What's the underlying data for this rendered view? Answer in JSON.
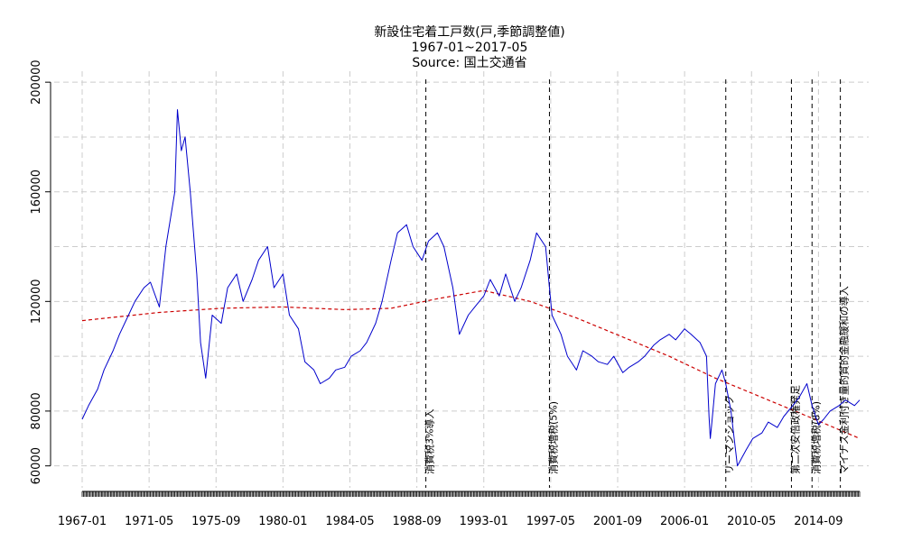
{
  "chart_data": {
    "type": "line",
    "title": "新設住宅着工戸数(戸,季節調整値)",
    "subtitle": "1967-01~2017-05",
    "source": "Source: 国土交通省",
    "xlabel": "",
    "ylabel": "",
    "x_range": [
      "1967-01",
      "2017-05"
    ],
    "x_tick_labels": [
      "1967-01",
      "1971-05",
      "1975-09",
      "1980-01",
      "1984-05",
      "1988-09",
      "1993-01",
      "1997-05",
      "2001-09",
      "2006-01",
      "2010-05",
      "2014-09"
    ],
    "ylim": [
      52000,
      204000
    ],
    "y_tick_labels": [
      "60000",
      "80000",
      "120000",
      "160000",
      "200000"
    ],
    "grid": true,
    "series": [
      {
        "role": "monthly",
        "color": "#0000cc",
        "x": [
          "1967-01",
          "1967-06",
          "1968-01",
          "1968-06",
          "1969-01",
          "1969-06",
          "1970-01",
          "1970-06",
          "1971-01",
          "1971-06",
          "1972-01",
          "1972-06",
          "1973-01",
          "1973-03",
          "1973-06",
          "1973-09",
          "1974-01",
          "1974-06",
          "1974-09",
          "1975-01",
          "1975-06",
          "1976-01",
          "1976-06",
          "1977-01",
          "1977-06",
          "1978-01",
          "1978-06",
          "1979-01",
          "1979-06",
          "1980-01",
          "1980-06",
          "1981-01",
          "1981-06",
          "1982-01",
          "1982-06",
          "1983-01",
          "1983-06",
          "1984-01",
          "1984-06",
          "1985-01",
          "1985-06",
          "1986-01",
          "1986-06",
          "1987-01",
          "1987-06",
          "1988-01",
          "1988-06",
          "1989-01",
          "1989-06",
          "1990-01",
          "1990-06",
          "1991-01",
          "1991-06",
          "1992-01",
          "1992-06",
          "1993-01",
          "1993-06",
          "1994-01",
          "1994-06",
          "1995-01",
          "1995-06",
          "1996-01",
          "1996-06",
          "1997-01",
          "1997-06",
          "1998-01",
          "1998-06",
          "1999-01",
          "1999-06",
          "2000-01",
          "2000-06",
          "2001-01",
          "2001-06",
          "2002-01",
          "2002-06",
          "2003-01",
          "2003-06",
          "2004-01",
          "2004-06",
          "2005-01",
          "2005-06",
          "2006-01",
          "2006-06",
          "2007-01",
          "2007-06",
          "2007-08",
          "2007-09",
          "2007-10",
          "2008-01",
          "2008-06",
          "2008-09",
          "2009-01",
          "2009-06",
          "2010-01",
          "2010-06",
          "2011-01",
          "2011-06",
          "2012-01",
          "2012-06",
          "2013-01",
          "2013-06",
          "2013-12",
          "2014-04",
          "2014-09",
          "2015-01",
          "2015-06",
          "2016-01",
          "2016-06",
          "2017-01",
          "2017-05"
        ],
        "values": [
          77000,
          82000,
          88000,
          95000,
          102000,
          108000,
          115000,
          120000,
          125000,
          127000,
          118000,
          140000,
          160000,
          190000,
          175000,
          180000,
          160000,
          130000,
          105000,
          92000,
          115000,
          112000,
          125000,
          130000,
          120000,
          128000,
          135000,
          140000,
          125000,
          130000,
          115000,
          110000,
          98000,
          95000,
          90000,
          92000,
          95000,
          96000,
          100000,
          102000,
          105000,
          112000,
          120000,
          135000,
          145000,
          148000,
          140000,
          135000,
          142000,
          145000,
          140000,
          125000,
          108000,
          115000,
          118000,
          122000,
          128000,
          122000,
          130000,
          120000,
          125000,
          135000,
          145000,
          140000,
          115000,
          108000,
          100000,
          95000,
          102000,
          100000,
          98000,
          97000,
          100000,
          94000,
          96000,
          98000,
          100000,
          104000,
          106000,
          108000,
          106000,
          110000,
          108000,
          105000,
          100000,
          78000,
          70000,
          75000,
          90000,
          95000,
          90000,
          80000,
          60000,
          66000,
          70000,
          72000,
          76000,
          74000,
          78000,
          82000,
          85000,
          90000,
          82000,
          75000,
          77000,
          80000,
          82000,
          84000,
          82000,
          84000
        ]
      },
      {
        "role": "trend",
        "color": "#cc0000",
        "x": [
          "1967-01",
          "1972-01",
          "1976-01",
          "1980-01",
          "1984-01",
          "1987-01",
          "1990-01",
          "1993-01",
          "1996-01",
          "1999-01",
          "2002-01",
          "2005-01",
          "2008-01",
          "2011-01",
          "2014-01",
          "2017-05"
        ],
        "values": [
          113000,
          116000,
          117500,
          118000,
          117000,
          117500,
          121000,
          124000,
          120000,
          114000,
          107000,
          100000,
          92000,
          85000,
          78000,
          70000
        ]
      }
    ],
    "events": [
      {
        "x": "1989-04",
        "label": "消費税3%導入"
      },
      {
        "x": "1997-04",
        "label": "消費税増税(5%)"
      },
      {
        "x": "2008-09",
        "label": "リーマンショック"
      },
      {
        "x": "2012-12",
        "label": "第二次安倍政権発足"
      },
      {
        "x": "2014-04",
        "label": "消費税増税(8%)"
      },
      {
        "x": "2016-02",
        "label": "マイナス金利付き量的質的金融緩和の導入"
      }
    ]
  }
}
